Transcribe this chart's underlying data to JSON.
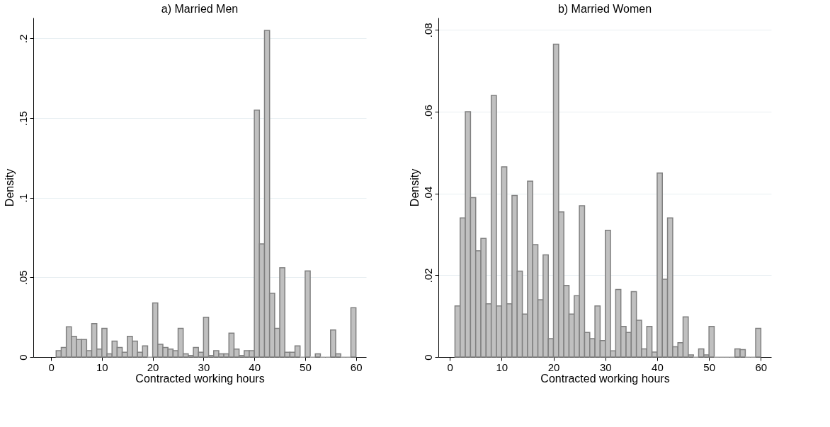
{
  "chart_data": [
    {
      "type": "histogram",
      "title": "a) Married Men",
      "xlabel": "Contracted working hours",
      "ylabel": "Density",
      "color": "#c0c0c0",
      "bins": [
        1,
        2,
        3,
        4,
        5,
        6,
        7,
        8,
        9,
        10,
        11,
        12,
        13,
        14,
        15,
        16,
        17,
        18,
        19,
        20,
        21,
        22,
        23,
        24,
        25,
        26,
        27,
        28,
        29,
        30,
        31,
        32,
        33,
        34,
        35,
        36,
        37,
        38,
        39,
        40,
        41,
        42,
        43,
        44,
        45,
        46,
        47,
        48,
        49,
        50,
        51,
        52,
        53,
        54,
        55,
        56,
        57,
        58,
        59,
        60
      ],
      "values": [
        0.004,
        0.006,
        0.019,
        0.013,
        0.011,
        0.011,
        0.004,
        0.021,
        0.005,
        0.018,
        0.002,
        0.01,
        0.006,
        0.003,
        0.013,
        0.01,
        0.003,
        0.007,
        0,
        0.034,
        0.008,
        0.006,
        0.005,
        0.004,
        0.018,
        0.002,
        0.001,
        0.006,
        0.003,
        0.025,
        0.001,
        0.004,
        0.002,
        0.002,
        0.015,
        0.005,
        0.001,
        0.004,
        0.004,
        0.155,
        0.071,
        0.205,
        0.04,
        0.018,
        0.056,
        0.003,
        0.003,
        0.007,
        0,
        0.054,
        0,
        0.002,
        0,
        0,
        0.017,
        0.002,
        0,
        0,
        0.031
      ],
      "xlim": [
        -3.5,
        62
      ],
      "ylim": [
        0,
        0.213
      ],
      "xticks": [
        0,
        10,
        20,
        30,
        40,
        50,
        60
      ],
      "yticks": [
        0,
        {
          "value": 0.05,
          "label": ".05"
        },
        {
          "value": 0.1,
          "label": ".1"
        },
        {
          "value": 0.15,
          "label": ".15"
        },
        {
          "value": 0.2,
          "label": ".2"
        }
      ],
      "grid": "y"
    },
    {
      "type": "histogram",
      "title": "b) Married Women",
      "xlabel": "Contracted working hours",
      "ylabel": "Density",
      "color": "#c0c0c0",
      "bins": [
        1,
        2,
        3,
        4,
        5,
        6,
        7,
        8,
        9,
        10,
        11,
        12,
        13,
        14,
        15,
        16,
        17,
        18,
        19,
        20,
        21,
        22,
        23,
        24,
        25,
        26,
        27,
        28,
        29,
        30,
        31,
        32,
        33,
        34,
        35,
        36,
        37,
        38,
        39,
        40,
        41,
        42,
        43,
        44,
        45,
        46,
        47,
        48,
        49,
        50,
        51,
        52,
        53,
        54,
        55,
        56,
        57,
        58,
        59,
        60
      ],
      "values": [
        0.0125,
        0.034,
        0.06,
        0.039,
        0.026,
        0.029,
        0.013,
        0.064,
        0.0125,
        0.0465,
        0.013,
        0.0395,
        0.021,
        0.0105,
        0.043,
        0.0275,
        0.014,
        0.025,
        0.0045,
        0.0765,
        0.0355,
        0.0175,
        0.0105,
        0.015,
        0.037,
        0.006,
        0.0045,
        0.0125,
        0.004,
        0.031,
        0.0015,
        0.0165,
        0.0075,
        0.006,
        0.016,
        0.009,
        0.002,
        0.0075,
        0.0012,
        0.045,
        0.019,
        0.034,
        0.0025,
        0.0035,
        0.0098,
        0.0005,
        0,
        0.002,
        0.0005,
        0.0075,
        0,
        0,
        0,
        0,
        0.002,
        0.0018,
        0,
        0,
        0.007
      ],
      "xlim": [
        -2.2,
        62
      ],
      "ylim": [
        0,
        0.083
      ],
      "xticks": [
        0,
        10,
        20,
        30,
        40,
        50,
        60
      ],
      "yticks": [
        0,
        {
          "value": 0.02,
          "label": ".02"
        },
        {
          "value": 0.04,
          "label": ".04"
        },
        {
          "value": 0.06,
          "label": ".06"
        },
        {
          "value": 0.08,
          "label": ".08"
        }
      ],
      "grid": "y"
    }
  ]
}
